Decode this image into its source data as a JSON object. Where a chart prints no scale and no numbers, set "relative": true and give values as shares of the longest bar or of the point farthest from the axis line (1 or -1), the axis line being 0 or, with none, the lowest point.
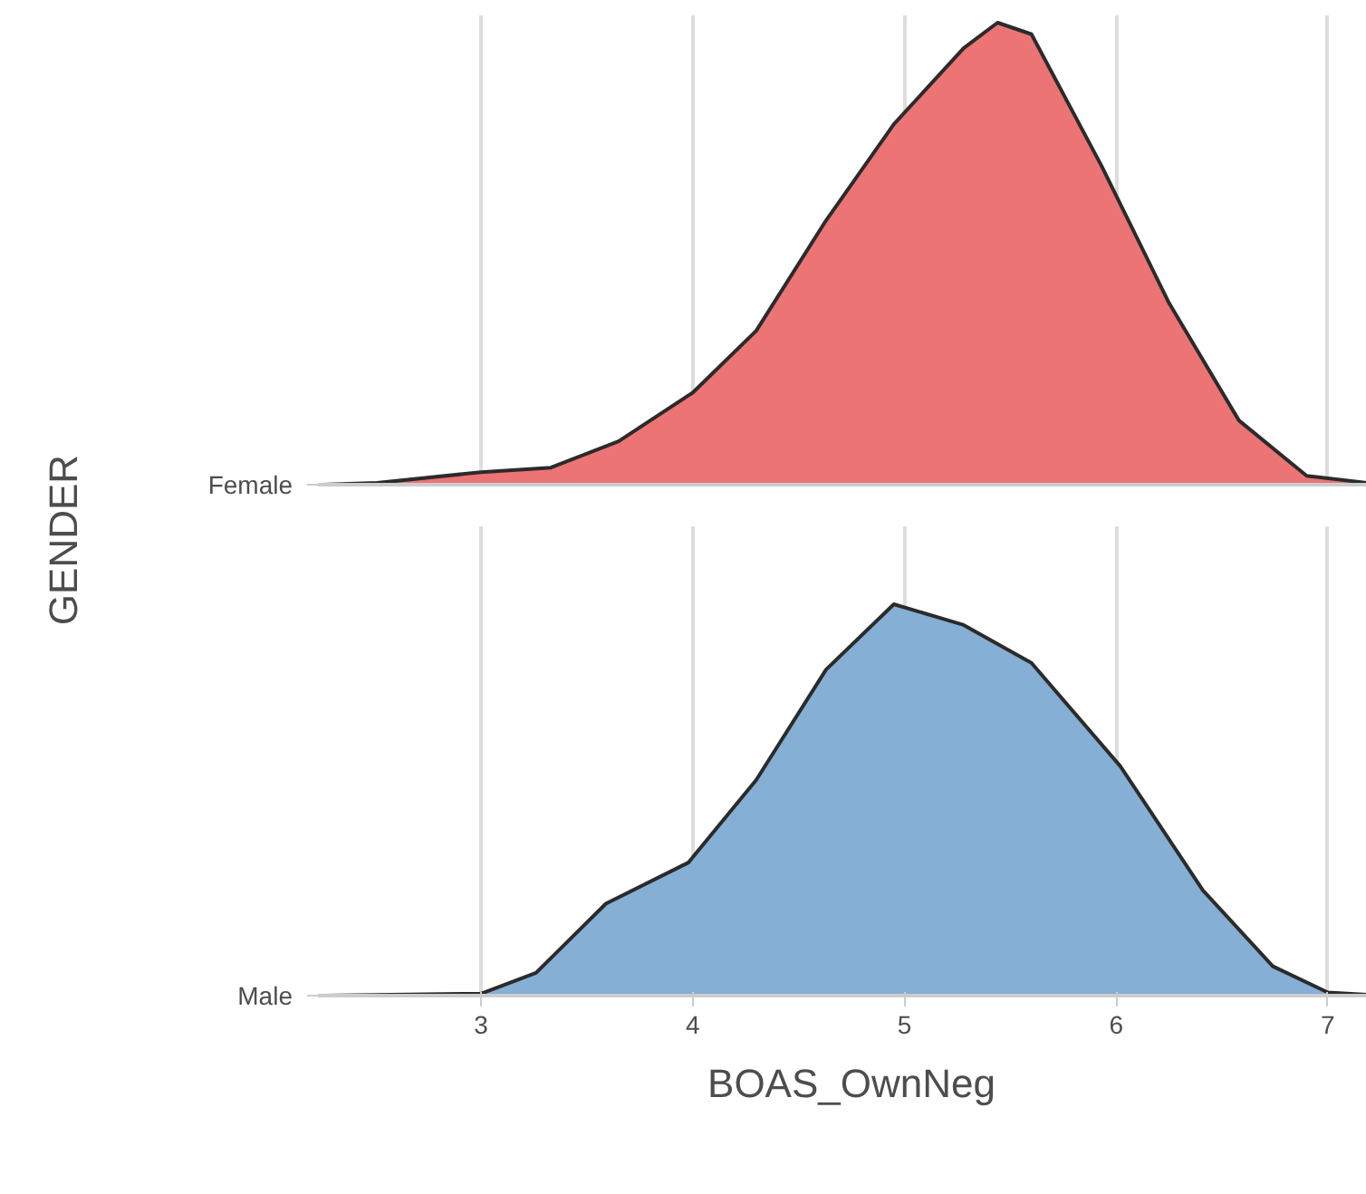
{
  "chart_data": [
    {
      "type": "area",
      "relative": true,
      "ylabel": "GENDER",
      "xlim": [
        2.23,
        7.27
      ],
      "xticks": [
        3,
        4,
        5,
        6,
        7
      ],
      "grid": "x",
      "tick_labels": false,
      "series": [
        {
          "name": "Female",
          "color": "#ec7475",
          "x": [
            2.25,
            2.51,
            3.0,
            3.33,
            3.65,
            4.0,
            4.3,
            4.63,
            4.95,
            5.28,
            5.44,
            5.6,
            5.93,
            6.25,
            6.58,
            6.9,
            7.26
          ],
          "values": [
            0,
            0.004,
            0.027,
            0.037,
            0.094,
            0.199,
            0.333,
            0.572,
            0.78,
            0.945,
            1.0,
            0.975,
            0.691,
            0.393,
            0.139,
            0.019,
            0
          ]
        }
      ]
    },
    {
      "type": "area",
      "relative": true,
      "xlabel": "BOAS_OwnNeg",
      "xlim": [
        2.23,
        7.27
      ],
      "xticks": [
        3,
        4,
        5,
        6,
        7
      ],
      "grid": "x",
      "tick_labels": "x",
      "series": [
        {
          "name": "Male",
          "color": "#85afd4",
          "x": [
            2.25,
            3.0,
            3.26,
            3.59,
            3.98,
            4.3,
            4.63,
            4.95,
            5.28,
            5.6,
            6.02,
            6.41,
            6.74,
            7.0,
            7.26
          ],
          "values": [
            0,
            0.005,
            0.058,
            0.235,
            0.34,
            0.551,
            0.833,
            1.0,
            0.947,
            0.85,
            0.586,
            0.269,
            0.075,
            0.008,
            0
          ]
        }
      ]
    }
  ]
}
